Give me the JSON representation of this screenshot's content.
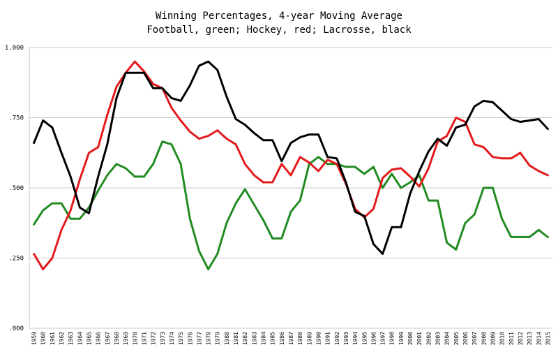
{
  "chart_data": {
    "type": "line",
    "title": "Winning Percentages, 4-year Moving Average",
    "subtitle": "Football, green; Hockey, red; Lacrosse, black",
    "xlabel": "",
    "ylabel": "",
    "ylim": [
      0,
      1
    ],
    "grid": true,
    "legend": "none",
    "yticks": [
      {
        "value": 0,
        "label": ".000"
      },
      {
        "value": 0.25,
        "label": ".250"
      },
      {
        "value": 0.5,
        "label": ".500"
      },
      {
        "value": 0.75,
        "label": ".750"
      },
      {
        "value": 1,
        "label": "1.000"
      }
    ],
    "categories": [
      "1959",
      "1960",
      "1961",
      "1962",
      "1963",
      "1964",
      "1965",
      "1966",
      "1967",
      "1968",
      "1969",
      "1970",
      "1971",
      "1972",
      "1973",
      "1974",
      "1975",
      "1976",
      "1977",
      "1978",
      "1979",
      "1980",
      "1981",
      "1982",
      "1983",
      "1984",
      "1985",
      "1986",
      "1987",
      "1988",
      "1989",
      "1990",
      "1991",
      "1992",
      "1993",
      "1994",
      "1995",
      "1996",
      "1997",
      "1998",
      "1999",
      "2000",
      "2001",
      "2002",
      "2003",
      "2004",
      "2005",
      "2006",
      "2007",
      "2008",
      "2009",
      "2010",
      "2011",
      "2012",
      "2013",
      "2014",
      "2015"
    ],
    "series": [
      {
        "color": "#228b22",
        "values": [
          0.37,
          0.42,
          0.445,
          0.445,
          0.39,
          0.39,
          0.43,
          0.49,
          0.545,
          0.585,
          0.57,
          0.54,
          0.54,
          0.585,
          0.665,
          0.655,
          0.585,
          0.39,
          0.275,
          0.21,
          0.265,
          0.375,
          0.445,
          0.495,
          0.44,
          0.385,
          0.32,
          0.32,
          0.415,
          0.455,
          0.585,
          0.61,
          0.585,
          0.585,
          0.575,
          0.575,
          0.55,
          0.575,
          0.5,
          0.55,
          0.5,
          0.52,
          0.545,
          0.455,
          0.455,
          0.305,
          0.28,
          0.375,
          0.405,
          0.5,
          0.5,
          0.39,
          0.325,
          0.325,
          0.325,
          0.35,
          0.325
        ]
      },
      {
        "color": "#e31a1c",
        "values": [
          0.265,
          0.21,
          0.25,
          0.35,
          0.42,
          0.53,
          0.625,
          0.645,
          0.76,
          0.86,
          0.91,
          0.95,
          0.915,
          0.87,
          0.855,
          0.785,
          0.74,
          0.7,
          0.675,
          0.685,
          0.705,
          0.675,
          0.655,
          0.585,
          0.545,
          0.52,
          0.52,
          0.585,
          0.545,
          0.61,
          0.59,
          0.56,
          0.6,
          0.585,
          0.515,
          0.425,
          0.395,
          0.425,
          0.535,
          0.565,
          0.57,
          0.54,
          0.505,
          0.57,
          0.665,
          0.685,
          0.75,
          0.735,
          0.655,
          0.645,
          0.61,
          0.605,
          0.605,
          0.625,
          0.58,
          0.56,
          0.545
        ]
      },
      {
        "color": "#000000",
        "values": [
          0.66,
          0.74,
          0.715,
          0.625,
          0.54,
          0.43,
          0.41,
          0.54,
          0.655,
          0.82,
          0.91,
          0.91,
          0.91,
          0.855,
          0.855,
          0.82,
          0.81,
          0.865,
          0.935,
          0.95,
          0.92,
          0.825,
          0.745,
          0.725,
          0.695,
          0.67,
          0.67,
          0.595,
          0.66,
          0.68,
          0.69,
          0.69,
          0.61,
          0.605,
          0.52,
          0.415,
          0.4,
          0.3,
          0.265,
          0.36,
          0.36,
          0.48,
          0.56,
          0.63,
          0.675,
          0.65,
          0.715,
          0.725,
          0.79,
          0.81,
          0.805,
          0.775,
          0.745,
          0.735,
          0.74,
          0.745,
          0.71
        ]
      }
    ]
  }
}
